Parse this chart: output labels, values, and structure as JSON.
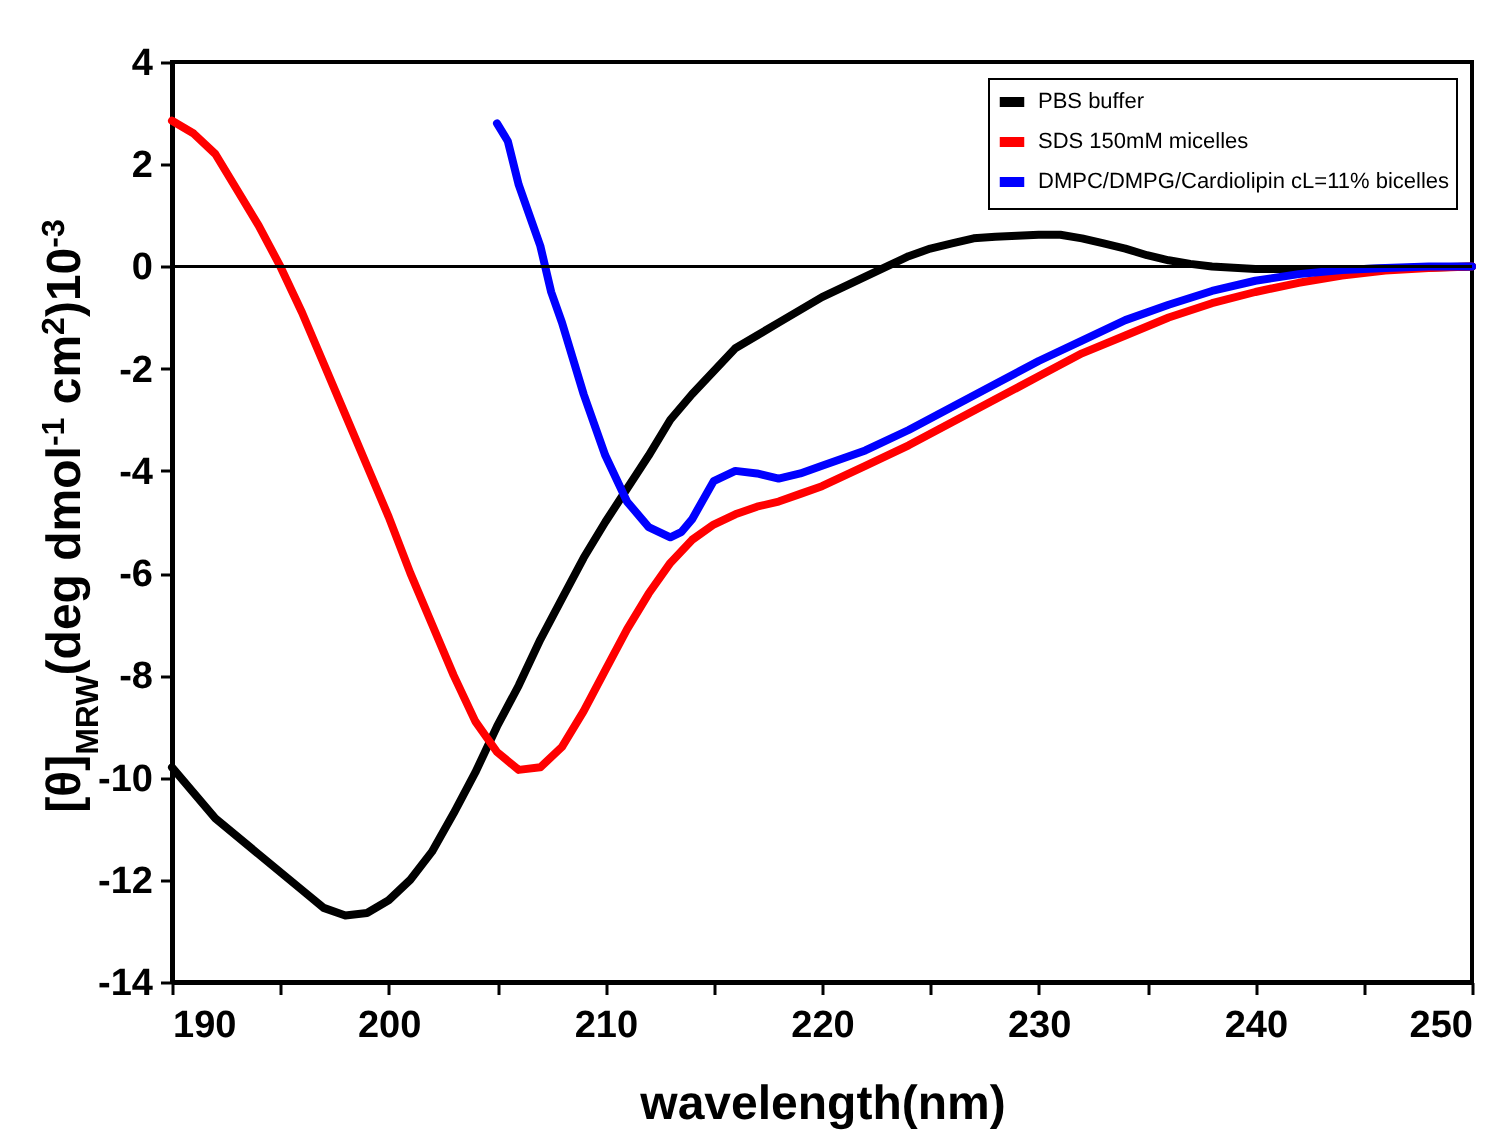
{
  "chart_data": {
    "type": "line",
    "xlabel": "wavelength(nm)",
    "ylabel": "[θ]$_{MRW}$(deg dmol$^{-1}$ cm$^{2}$)10$^{-3}$",
    "xlim": [
      190,
      250
    ],
    "xticks": [
      190,
      {
        "value": 195,
        "label": null
      },
      200,
      {
        "value": 205,
        "label": null
      },
      210,
      {
        "value": 215,
        "label": null
      },
      220,
      {
        "value": 225,
        "label": null
      },
      230,
      {
        "value": 235,
        "label": null
      },
      240,
      {
        "value": 245,
        "label": null
      },
      250
    ],
    "ylim": [
      -14,
      4
    ],
    "yticks": [
      -14,
      -12,
      -10,
      -8,
      -6,
      -4,
      -2,
      0,
      2,
      4
    ],
    "grid": false,
    "legend": "top right",
    "marker": "none",
    "line_style": "solid",
    "ref_lines": [
      {
        "axis": "y",
        "value": 0,
        "label": null,
        "color": "#000000"
      }
    ],
    "series": [
      {
        "name": "PBS buffer",
        "color": "#000000",
        "x": [
          190,
          192,
          194,
          196,
          197,
          198,
          199,
          200,
          201,
          202,
          203,
          204,
          205,
          206,
          207,
          208,
          209,
          210,
          211,
          212,
          213,
          214,
          215,
          216,
          217,
          218,
          219,
          220,
          221,
          222,
          223,
          224,
          225,
          226,
          227,
          228,
          229,
          230,
          231,
          232,
          233,
          234,
          235,
          236,
          237,
          238,
          240,
          242,
          245,
          250
        ],
        "values": [
          -9.8,
          -10.8,
          -11.5,
          -12.2,
          -12.55,
          -12.7,
          -12.65,
          -12.4,
          -12.0,
          -11.45,
          -10.7,
          -9.9,
          -9.0,
          -8.2,
          -7.3,
          -6.5,
          -5.7,
          -5.0,
          -4.35,
          -3.7,
          -3.0,
          -2.5,
          -2.05,
          -1.6,
          -1.35,
          -1.1,
          -0.85,
          -0.6,
          -0.4,
          -0.2,
          0.0,
          0.2,
          0.35,
          0.45,
          0.55,
          0.58,
          0.6,
          0.62,
          0.62,
          0.55,
          0.45,
          0.35,
          0.22,
          0.12,
          0.05,
          0.0,
          -0.05,
          -0.05,
          -0.05,
          0.0
        ]
      },
      {
        "name": "SDS 150mM micelles",
        "color": "#ff0000",
        "x": [
          190,
          191,
          192,
          193,
          194,
          195,
          196,
          197,
          198,
          199,
          200,
          201,
          202,
          203,
          204,
          205,
          206,
          207,
          208,
          209,
          210,
          211,
          212,
          213,
          214,
          215,
          216,
          217,
          218,
          219,
          220,
          222,
          224,
          226,
          228,
          230,
          232,
          234,
          236,
          238,
          240,
          242,
          244,
          246,
          248,
          250
        ],
        "values": [
          2.85,
          2.6,
          2.2,
          1.5,
          0.8,
          0.0,
          -0.9,
          -1.9,
          -2.9,
          -3.9,
          -4.9,
          -6.0,
          -7.0,
          -8.0,
          -8.9,
          -9.5,
          -9.85,
          -9.8,
          -9.4,
          -8.7,
          -7.9,
          -7.1,
          -6.4,
          -5.8,
          -5.35,
          -5.05,
          -4.85,
          -4.7,
          -4.6,
          -4.45,
          -4.3,
          -3.9,
          -3.5,
          -3.05,
          -2.6,
          -2.15,
          -1.7,
          -1.35,
          -1.0,
          -0.72,
          -0.5,
          -0.32,
          -0.18,
          -0.08,
          -0.03,
          0.0
        ]
      },
      {
        "name": "DMPC/DMPG/Cardiolipin cL=11% bicelles",
        "color": "#0000ff",
        "x": [
          205,
          205.5,
          206,
          206.5,
          207,
          207.5,
          208,
          209,
          210,
          211,
          212,
          213,
          213.5,
          214,
          215,
          216,
          217,
          218,
          219,
          220,
          222,
          224,
          226,
          228,
          230,
          232,
          234,
          236,
          238,
          240,
          242,
          244,
          246,
          248,
          250
        ],
        "values": [
          2.8,
          2.45,
          1.6,
          1.0,
          0.4,
          -0.5,
          -1.1,
          -2.5,
          -3.7,
          -4.6,
          -5.1,
          -5.3,
          -5.2,
          -4.95,
          -4.2,
          -4.0,
          -4.05,
          -4.15,
          -4.05,
          -3.9,
          -3.6,
          -3.2,
          -2.75,
          -2.3,
          -1.85,
          -1.45,
          -1.05,
          -0.75,
          -0.48,
          -0.28,
          -0.15,
          -0.07,
          -0.03,
          0.0,
          0.0
        ]
      }
    ]
  }
}
